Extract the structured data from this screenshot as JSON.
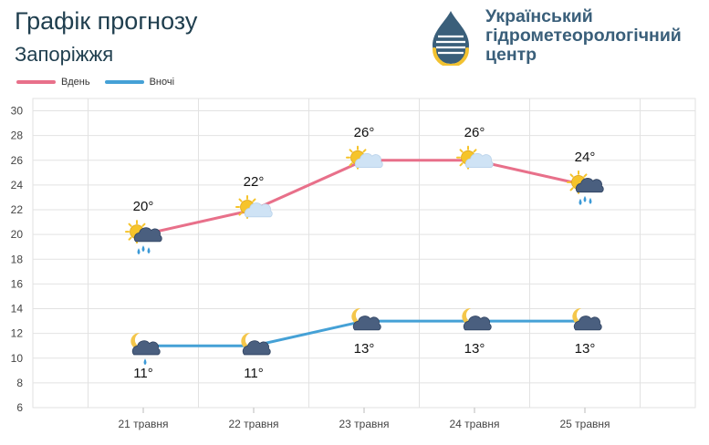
{
  "header": {
    "title": "Графік прогнозу",
    "city": "Запоріжжя",
    "org_lines": [
      "Український",
      "гідрометеорологічний",
      "центр"
    ]
  },
  "legend": {
    "day_label": "Вдень",
    "night_label": "Вночі"
  },
  "colors": {
    "day": "#e8708a",
    "night": "#45a1d6",
    "grid": "#e2e2e2",
    "sun": "#f6c42a",
    "cloud_light": "#cfe3f5",
    "cloud_dark": "#4a5f7f",
    "rain": "#3c9ad7",
    "moon": "#f4c64a"
  },
  "chart_data": {
    "type": "line",
    "categories": [
      "21 травня",
      "22 травня",
      "23 травня",
      "24 травня",
      "25 травня"
    ],
    "series": [
      {
        "name": "Вдень",
        "values": [
          20,
          22,
          26,
          26,
          24
        ],
        "labels": [
          "20°",
          "22°",
          "26°",
          "26°",
          "24°"
        ],
        "icons": [
          "sun-cloud-rain-icon",
          "sun-cloud-icon",
          "sun-cloud-icon",
          "sun-cloud-icon",
          "sun-cloud-rain-icon"
        ]
      },
      {
        "name": "Вночі",
        "values": [
          11,
          11,
          13,
          13,
          13
        ],
        "labels": [
          "11°",
          "11°",
          "13°",
          "13°",
          "13°"
        ],
        "icons": [
          "moon-cloud-rain-icon",
          "moon-cloud-icon",
          "moon-cloud-icon",
          "moon-cloud-icon",
          "moon-cloud-icon"
        ]
      }
    ],
    "yticks": [
      6,
      8,
      10,
      12,
      14,
      16,
      18,
      20,
      22,
      24,
      26,
      28,
      30
    ],
    "ylim": [
      6,
      31
    ],
    "grid": true,
    "legend_position": "top-left"
  }
}
